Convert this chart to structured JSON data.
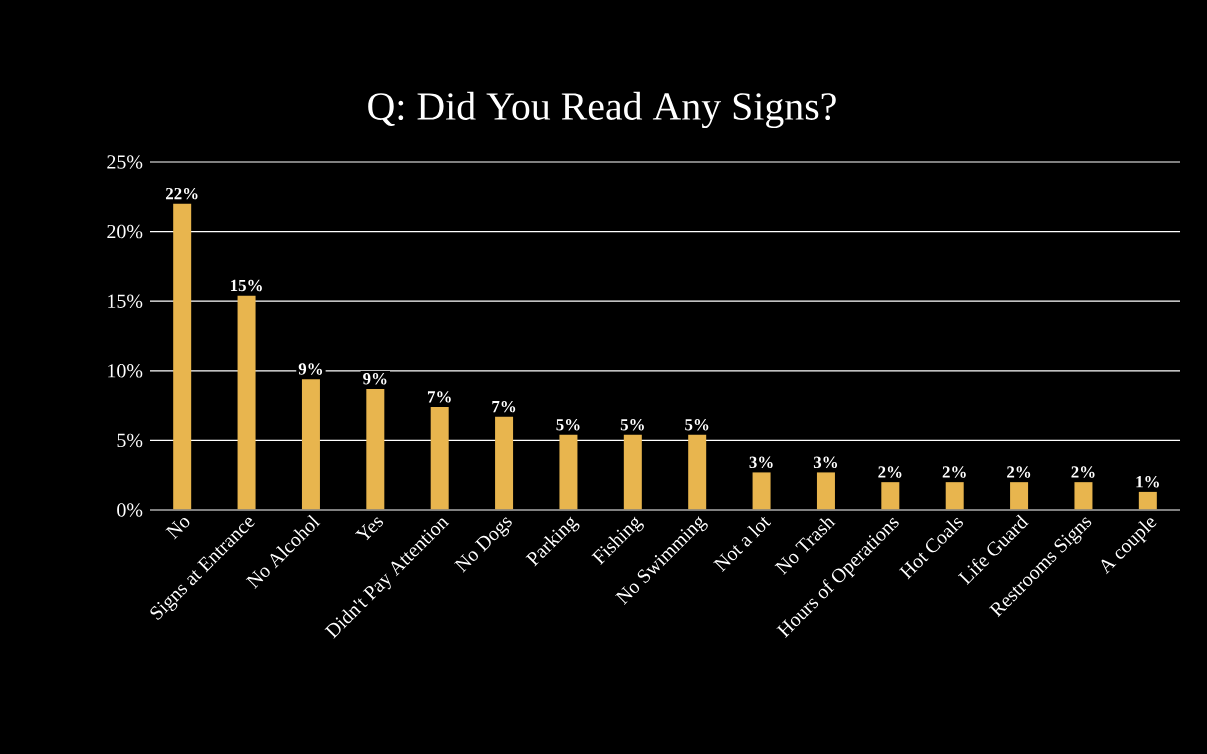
{
  "chart_data": {
    "type": "bar",
    "title": "Q: Did You Read Any Signs?",
    "categories": [
      "No",
      "Signs at Entrance",
      "No Alcohol",
      "Yes",
      "Didn't Pay Attention",
      "No Dogs",
      "Parking",
      "Fishing",
      "No Swimming",
      "Not a lot",
      "No Trash",
      "Hours of Operations",
      "Hot Coals",
      "Life Guard",
      "Restrooms Signs",
      "A couple"
    ],
    "values": [
      22.0,
      15.4,
      9.4,
      8.7,
      7.4,
      6.7,
      5.4,
      5.4,
      5.4,
      2.7,
      2.7,
      2.0,
      2.0,
      2.0,
      2.0,
      1.3
    ],
    "value_labels": [
      "22%",
      "15%",
      "9%",
      "9%",
      "7%",
      "7%",
      "5%",
      "5%",
      "5%",
      "3%",
      "3%",
      "2%",
      "2%",
      "2%",
      "2%",
      "1%"
    ],
    "color": "#e8b54e",
    "ylim": [
      0,
      25
    ],
    "yticks": [
      {
        "value": 0,
        "label": "0%"
      },
      {
        "value": 5,
        "label": "5%"
      },
      {
        "value": 10,
        "label": "10%"
      },
      {
        "value": 15,
        "label": "15%"
      },
      {
        "value": 20,
        "label": "20%"
      },
      {
        "value": 25,
        "label": "25%"
      }
    ],
    "grid": "y"
  }
}
